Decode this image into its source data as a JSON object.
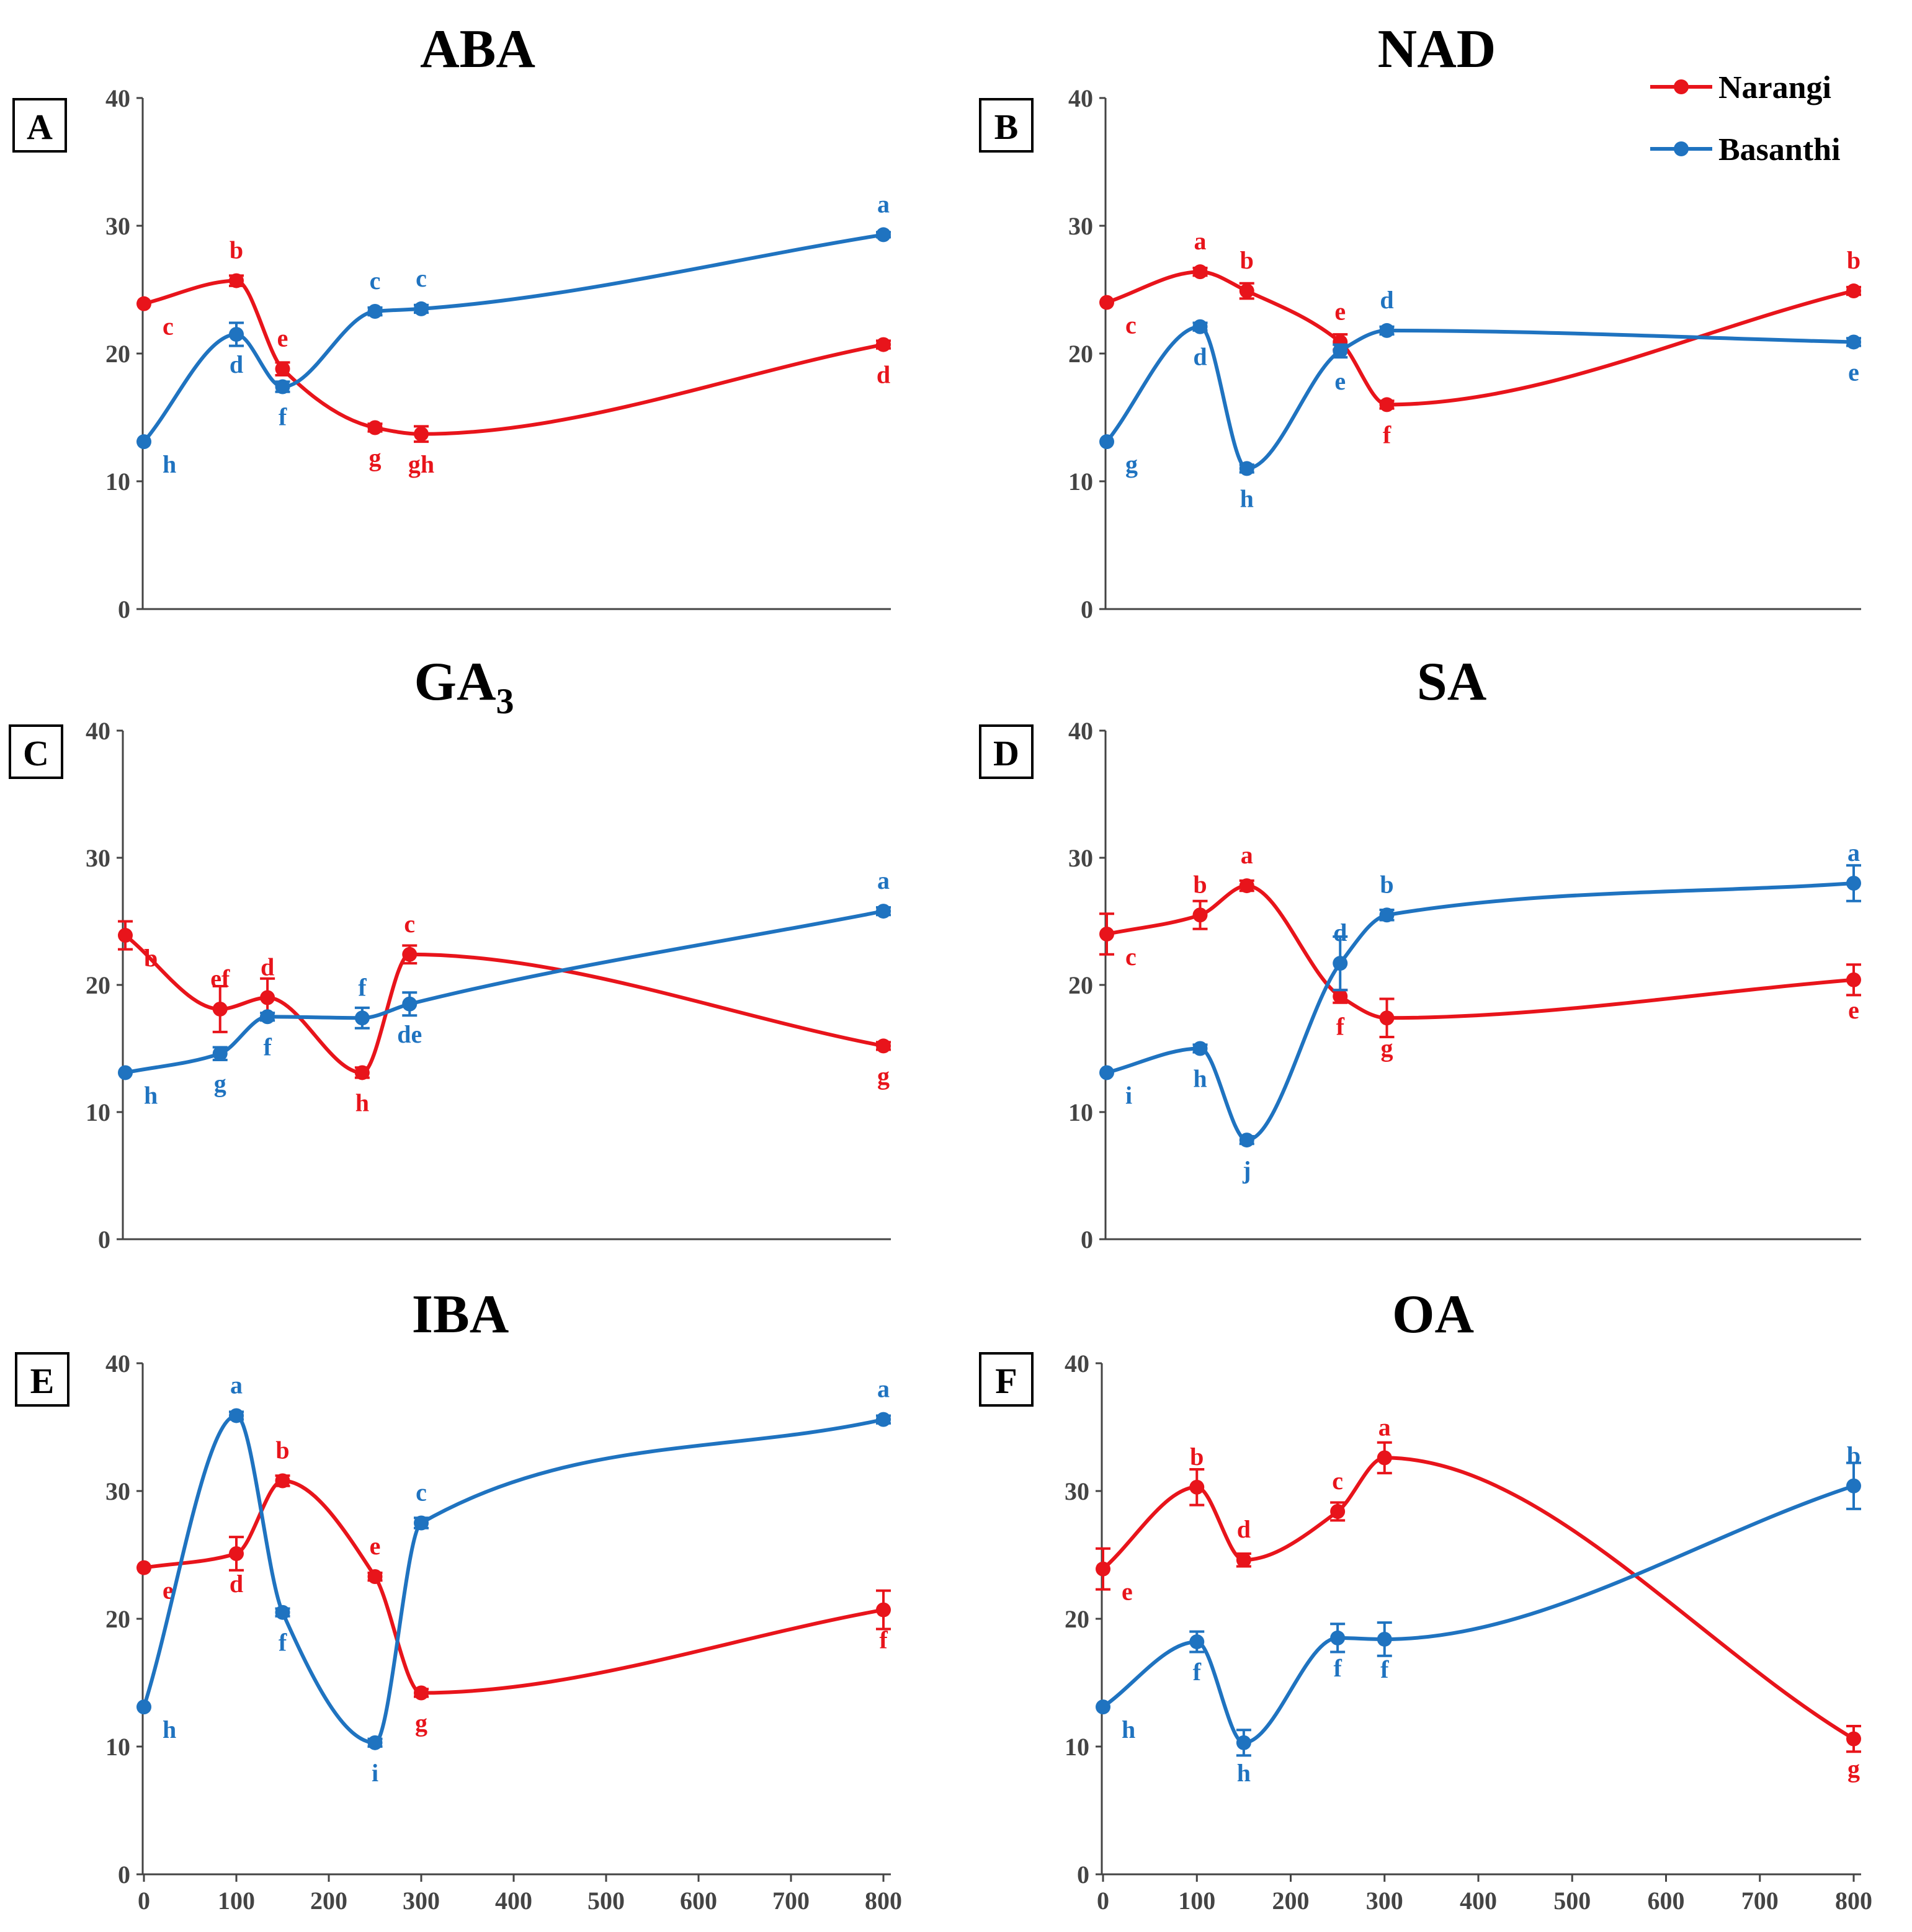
{
  "series_colors": {
    "Narangi": "#e8141b",
    "Basanthi": "#1f73c0"
  },
  "legend": [
    {
      "name": "Narangi",
      "color": "#e8141b"
    },
    {
      "name": "Basanthi",
      "color": "#1f73c0"
    }
  ],
  "chart_data": [
    {
      "type": "line",
      "panel": "A",
      "title": "ABA",
      "title_sub": "",
      "ylim": [
        0,
        40
      ],
      "yticks": [
        0,
        10,
        20,
        30,
        40
      ],
      "xlim": [
        0,
        800
      ],
      "xticks": [],
      "show_xticks": false,
      "series": [
        {
          "name": "Narangi",
          "x": [
            0,
            100,
            150,
            250,
            300,
            800
          ],
          "values": [
            23.9,
            25.7,
            18.8,
            14.2,
            13.7,
            20.7
          ],
          "errors": [
            0,
            0.4,
            0.5,
            0.3,
            0.6,
            0.3
          ],
          "letters": [
            "c",
            "b",
            "e",
            "g",
            "gh",
            "d"
          ]
        },
        {
          "name": "Basanthi",
          "x": [
            0,
            100,
            150,
            250,
            300,
            800
          ],
          "values": [
            13.1,
            21.5,
            17.4,
            23.3,
            23.5,
            29.3
          ],
          "errors": [
            0,
            0.9,
            0.4,
            0.3,
            0.3,
            0.2
          ],
          "letters": [
            "h",
            "d",
            "f",
            "c",
            "c",
            "a"
          ]
        }
      ]
    },
    {
      "type": "line",
      "panel": "B",
      "title": "NAD",
      "title_sub": "",
      "ylim": [
        0,
        40
      ],
      "yticks": [
        0,
        10,
        20,
        30,
        40
      ],
      "xlim": [
        0,
        800
      ],
      "xticks": [],
      "show_xticks": false,
      "series": [
        {
          "name": "Narangi",
          "x": [
            0,
            100,
            150,
            250,
            300,
            800
          ],
          "values": [
            24,
            26.4,
            24.9,
            20.9,
            16,
            24.9
          ],
          "errors": [
            0,
            0.3,
            0.6,
            0.6,
            0.3,
            0.3
          ],
          "letters": [
            "c",
            "a",
            "b",
            "e",
            "f",
            "b"
          ]
        },
        {
          "name": "Basanthi",
          "x": [
            0,
            100,
            150,
            250,
            300,
            800
          ],
          "values": [
            13.1,
            22.1,
            11,
            20.2,
            21.8,
            20.9
          ],
          "errors": [
            0,
            0.3,
            0.3,
            0.5,
            0.3,
            0.3
          ],
          "letters": [
            "g",
            "d",
            "h",
            "e",
            "d",
            "e"
          ]
        }
      ]
    },
    {
      "type": "line",
      "panel": "C",
      "title": "GA",
      "title_sub": "3",
      "ylim": [
        0,
        40
      ],
      "yticks": [
        0,
        10,
        20,
        30,
        40
      ],
      "xlim": [
        0,
        800
      ],
      "xticks": [],
      "show_xticks": false,
      "series": [
        {
          "name": "Narangi",
          "x": [
            0,
            100,
            150,
            250,
            300,
            800
          ],
          "values": [
            23.9,
            18.1,
            19,
            13.1,
            22.4,
            15.2
          ],
          "errors": [
            1.1,
            1.8,
            1.5,
            0.4,
            0.7,
            0.3
          ],
          "letters": [
            "b",
            "ef",
            "d",
            "h",
            "c",
            "g"
          ]
        },
        {
          "name": "Basanthi",
          "x": [
            0,
            100,
            150,
            250,
            300,
            800
          ],
          "values": [
            13.1,
            14.6,
            17.5,
            17.4,
            18.5,
            25.8
          ],
          "errors": [
            0,
            0.5,
            0.3,
            0.8,
            0.9,
            0.3
          ],
          "letters": [
            "h",
            "g",
            "f",
            "f",
            "de",
            "a"
          ]
        }
      ]
    },
    {
      "type": "line",
      "panel": "D",
      "title": "SA",
      "title_sub": "",
      "ylim": [
        0,
        40
      ],
      "yticks": [
        0,
        10,
        20,
        30,
        40
      ],
      "xlim": [
        0,
        800
      ],
      "xticks": [],
      "show_xticks": false,
      "series": [
        {
          "name": "Narangi",
          "x": [
            0,
            100,
            150,
            250,
            300,
            800
          ],
          "values": [
            24,
            25.5,
            27.8,
            19.1,
            17.4,
            20.4
          ],
          "errors": [
            1.6,
            1.1,
            0.4,
            0.5,
            1.5,
            1.2
          ],
          "letters": [
            "c",
            "b",
            "a",
            "f",
            "g",
            "e"
          ]
        },
        {
          "name": "Basanthi",
          "x": [
            0,
            100,
            150,
            250,
            300,
            800
          ],
          "values": [
            13.1,
            15,
            7.8,
            21.7,
            25.5,
            28
          ],
          "errors": [
            0,
            0.3,
            0.3,
            2.1,
            0.4,
            1.4
          ],
          "letters": [
            "i",
            "h",
            "j",
            "d",
            "b",
            "a"
          ]
        }
      ]
    },
    {
      "type": "line",
      "panel": "E",
      "title": "IBA",
      "title_sub": "",
      "ylim": [
        0,
        40
      ],
      "yticks": [
        0,
        10,
        20,
        30,
        40
      ],
      "xlim": [
        0,
        800
      ],
      "xticks": [
        0,
        100,
        200,
        300,
        400,
        500,
        600,
        700,
        800
      ],
      "show_xticks": true,
      "series": [
        {
          "name": "Narangi",
          "x": [
            0,
            100,
            150,
            250,
            300,
            800
          ],
          "values": [
            24,
            25.1,
            30.8,
            23.3,
            14.2,
            20.7
          ],
          "errors": [
            0,
            1.3,
            0.4,
            0.3,
            0.3,
            1.5
          ],
          "letters": [
            "e",
            "d",
            "b",
            "e",
            "g",
            "f"
          ]
        },
        {
          "name": "Basanthi",
          "x": [
            0,
            100,
            150,
            250,
            300,
            800
          ],
          "values": [
            13.1,
            35.9,
            20.5,
            10.3,
            27.5,
            35.6
          ],
          "errors": [
            0,
            0.3,
            0.3,
            0.3,
            0.4,
            0.3
          ],
          "letters": [
            "h",
            "a",
            "f",
            "i",
            "c",
            "a"
          ]
        }
      ]
    },
    {
      "type": "line",
      "panel": "F",
      "title": "OA",
      "title_sub": "",
      "ylim": [
        0,
        40
      ],
      "yticks": [
        0,
        10,
        20,
        30,
        40
      ],
      "xlim": [
        0,
        800
      ],
      "xticks": [
        0,
        100,
        200,
        300,
        400,
        500,
        600,
        700,
        800
      ],
      "show_xticks": true,
      "series": [
        {
          "name": "Narangi",
          "x": [
            0,
            100,
            150,
            250,
            300,
            800
          ],
          "values": [
            23.9,
            30.3,
            24.6,
            28.4,
            32.6,
            10.6
          ],
          "errors": [
            1.6,
            1.4,
            0.5,
            0.7,
            1.2,
            1
          ],
          "letters": [
            "e",
            "b",
            "d",
            "c",
            "a",
            "g"
          ]
        },
        {
          "name": "Basanthi",
          "x": [
            0,
            100,
            150,
            250,
            300,
            800
          ],
          "values": [
            13.1,
            18.2,
            10.3,
            18.5,
            18.4,
            30.4
          ],
          "errors": [
            0,
            0.8,
            1,
            1.1,
            1.3,
            1.8
          ],
          "letters": [
            "h",
            "f",
            "h",
            "f",
            "f",
            "b"
          ]
        }
      ]
    }
  ]
}
